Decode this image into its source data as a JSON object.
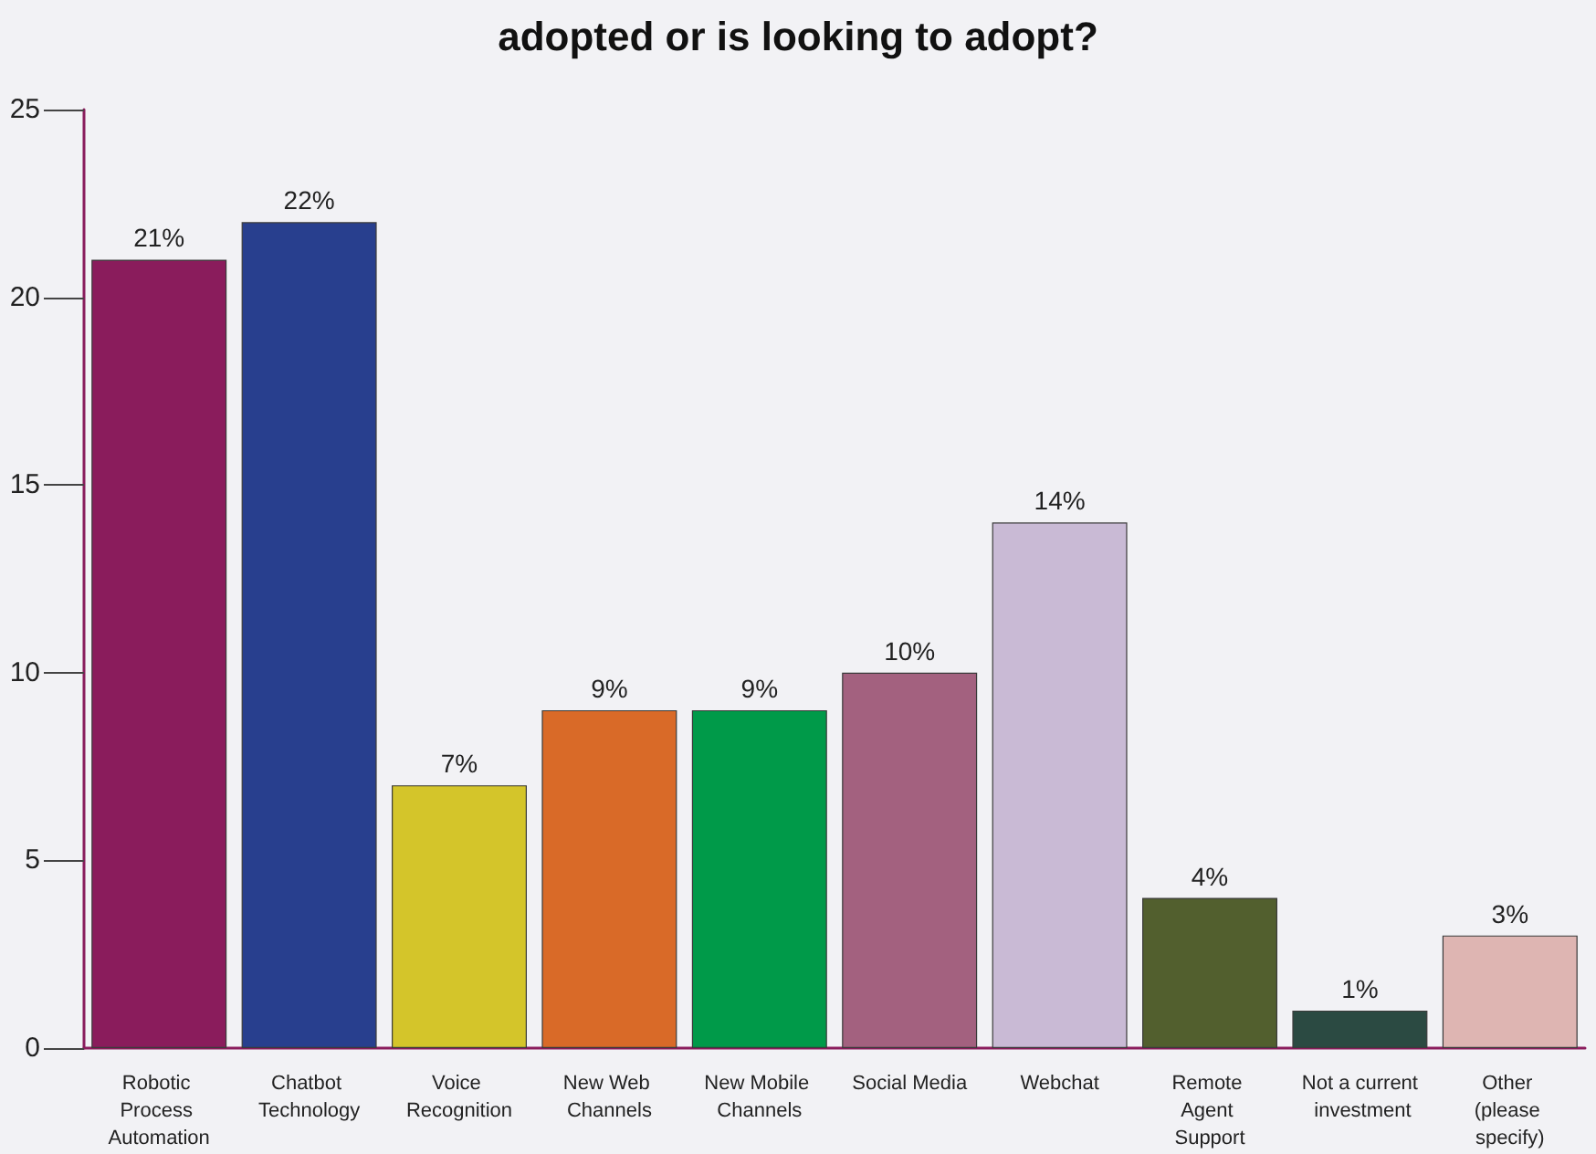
{
  "chart_data": {
    "type": "bar",
    "title": "adopted or is looking to adopt?",
    "categories": [
      "Robotic Process Automation",
      "Chatbot Technology",
      "Voice Recognition",
      "New Web Channels",
      "New Mobile Channels",
      "Social Media",
      "Webchat",
      "Remote Agent Support",
      "Not a current investment",
      "Other (please specify)"
    ],
    "values": [
      21,
      22,
      7,
      9,
      9,
      10,
      14,
      4,
      1,
      3
    ],
    "colors": [
      "#8a1c5c",
      "#283f8e",
      "#d4c52a",
      "#d96a28",
      "#009a49",
      "#a3617f",
      "#c9bad5",
      "#525f2e",
      "#2b4a42",
      "#deb5b2"
    ],
    "value_labels": [
      "21%",
      "22%",
      "7%",
      "9%",
      "9%",
      "10%",
      "14%",
      "4%",
      "1%",
      "3%"
    ],
    "ylim": [
      0,
      25
    ],
    "yticks": [
      0,
      5,
      10,
      15,
      20,
      25
    ],
    "grid": false
  }
}
